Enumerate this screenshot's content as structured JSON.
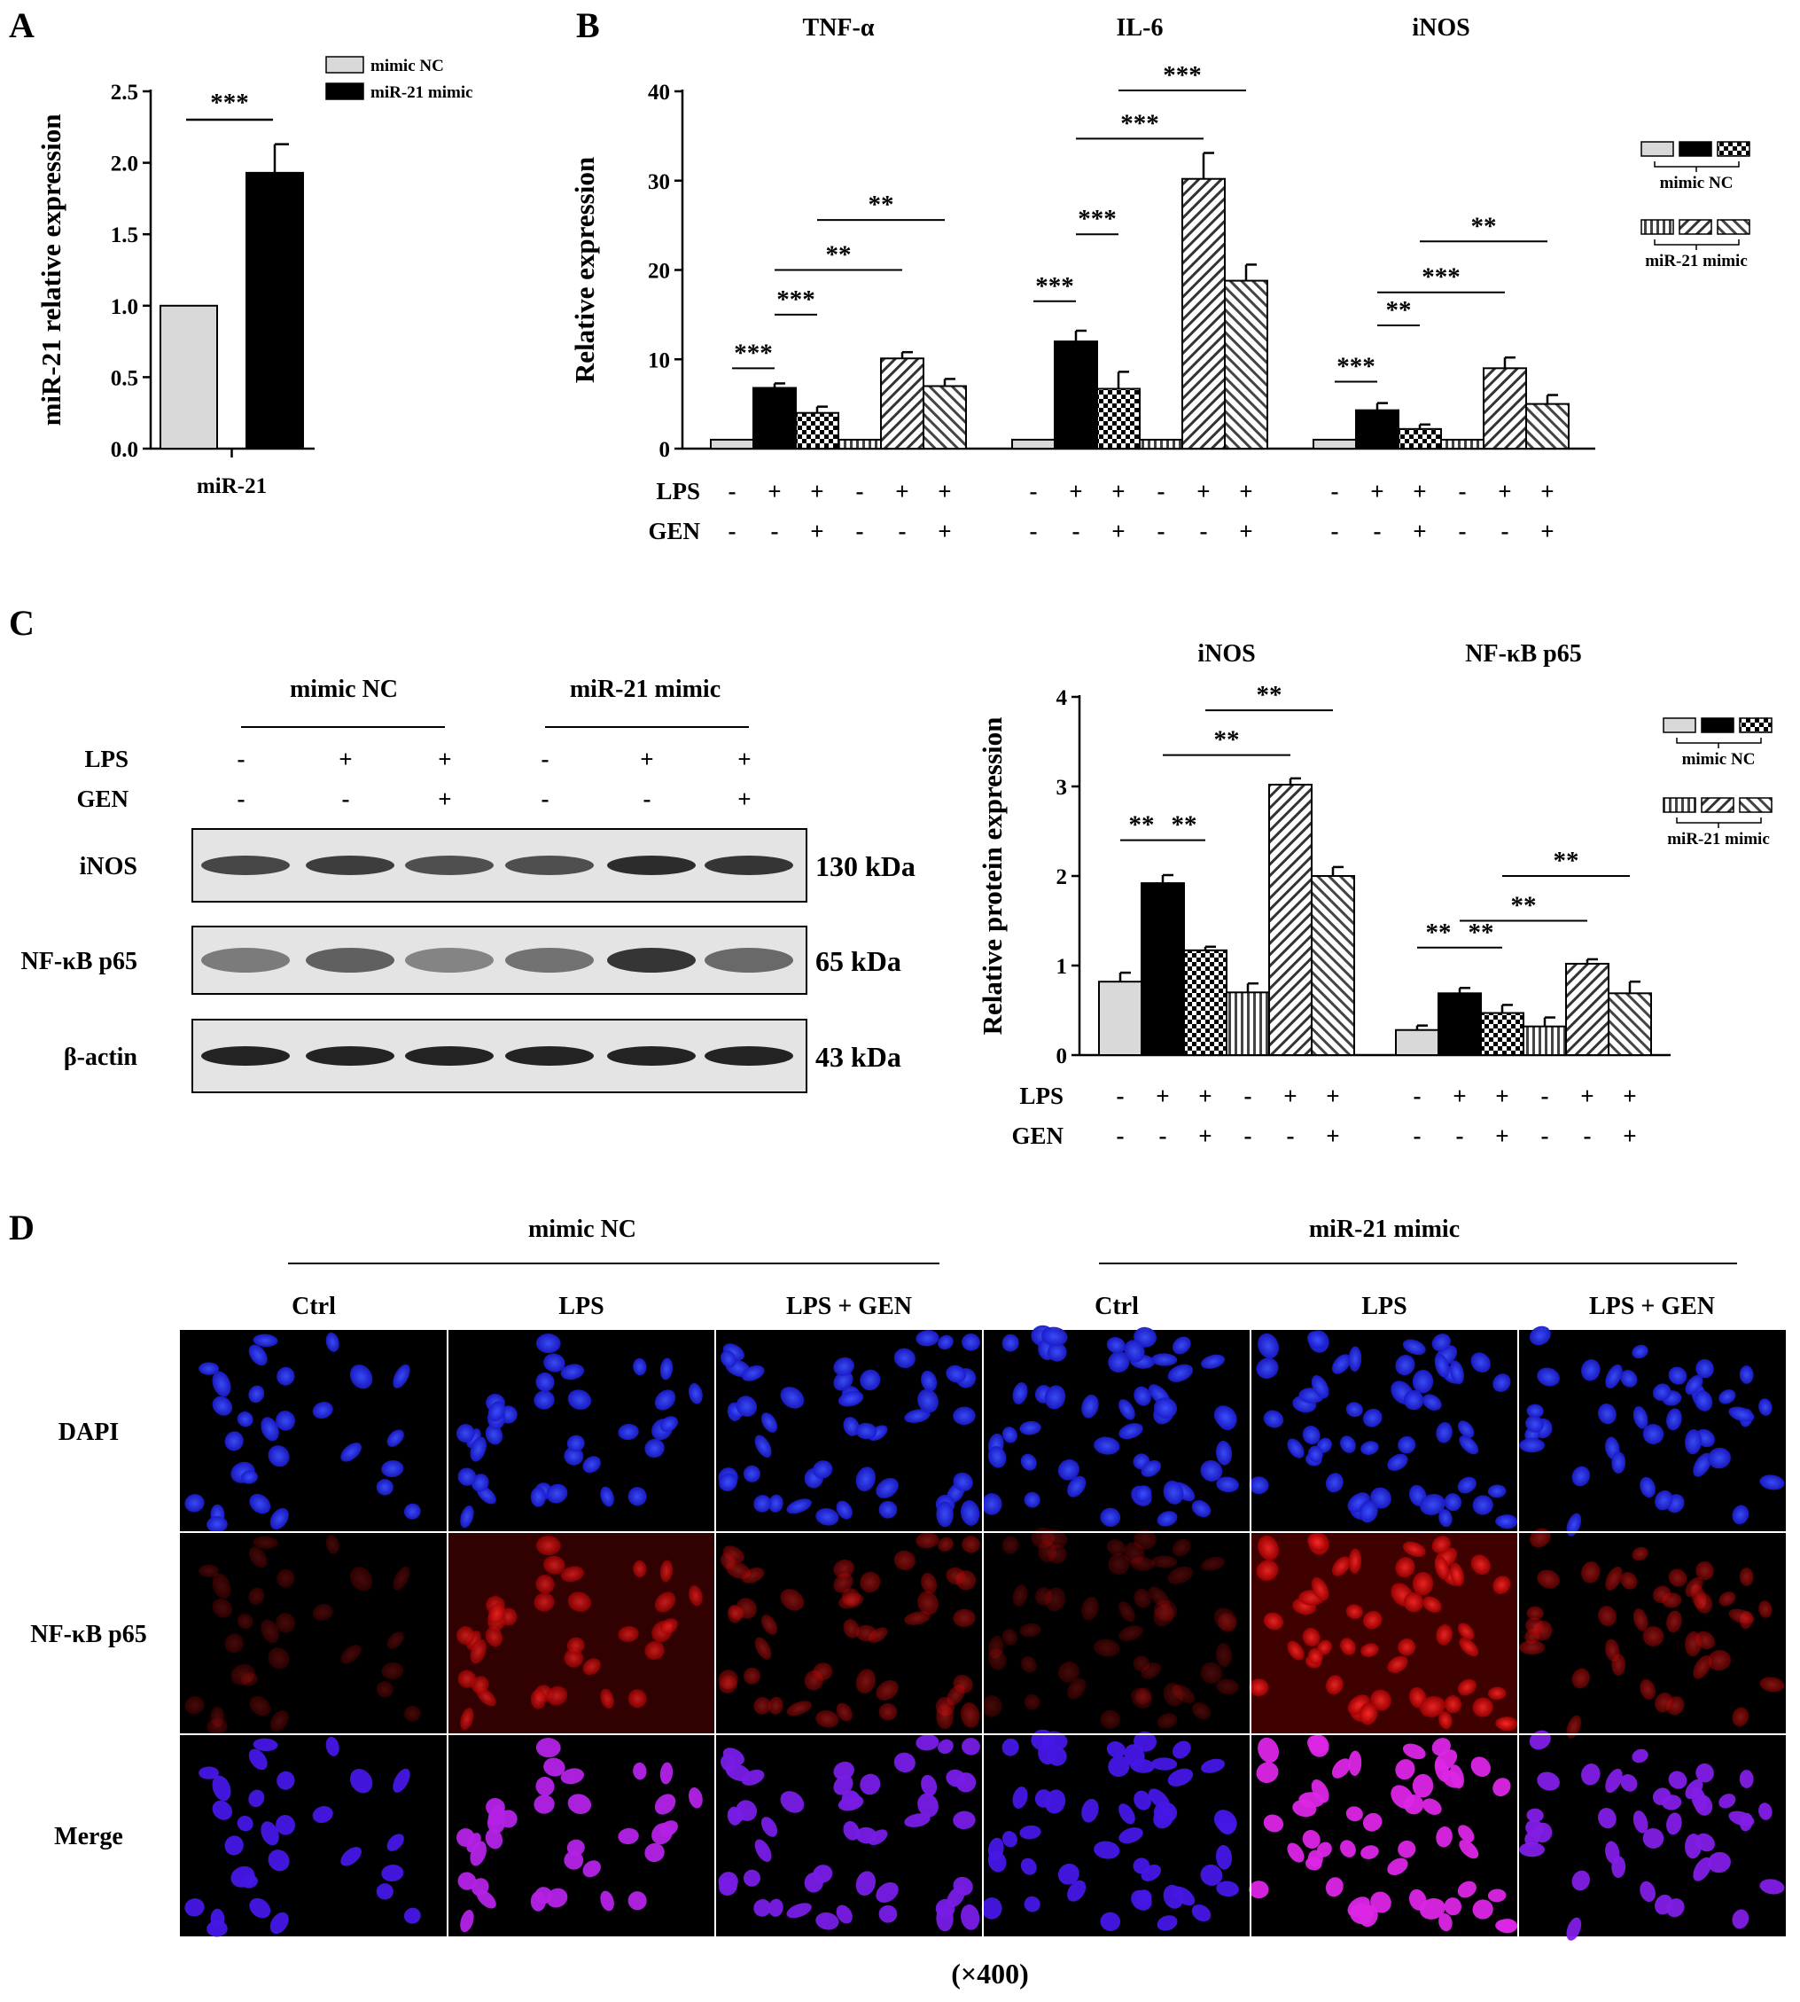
{
  "panels": {
    "a": "A",
    "b": "B",
    "c": "C",
    "d": "D"
  },
  "chart_data": [
    {
      "type": "bar",
      "panel": "A",
      "categories": [
        "miR-21"
      ],
      "series": [
        {
          "name": "mimic NC",
          "values": [
            1.0
          ],
          "errors": [
            0.0
          ],
          "color": "#d9d9d9"
        },
        {
          "name": "miR-21 mimic",
          "values": [
            1.93
          ],
          "errors": [
            0.2
          ],
          "color": "#000000"
        }
      ],
      "ylabel": "miR-21 relative expression",
      "ylim": [
        0,
        2.5
      ],
      "yticks": [
        "0.0",
        "0.5",
        "1.0",
        "1.5",
        "2.0",
        "2.5"
      ],
      "significance": [
        "***"
      ],
      "legend_position": "top-right",
      "grid": false
    },
    {
      "type": "bar",
      "panel": "B",
      "groups": [
        "TNF-α",
        "IL-6",
        "iNOS"
      ],
      "ylabel": "Relative expression",
      "ylim": [
        0,
        40
      ],
      "yticks": [
        "0",
        "10",
        "20",
        "30",
        "40"
      ],
      "row_labels": [
        "LPS",
        "GEN"
      ],
      "conditions": {
        "LPS": [
          "-",
          "+",
          "+",
          "-",
          "+",
          "+"
        ],
        "GEN": [
          "-",
          "-",
          "+",
          "-",
          "-",
          "+"
        ]
      },
      "values": [
        [
          1.0,
          6.8,
          4.0,
          1.0,
          10.1,
          7.0
        ],
        [
          1.0,
          12.0,
          6.7,
          1.0,
          30.2,
          18.8
        ],
        [
          1.0,
          4.3,
          2.2,
          1.0,
          9.0,
          5.0
        ]
      ],
      "errors": [
        [
          0,
          0.5,
          0.7,
          0,
          0.7,
          0.8
        ],
        [
          0,
          1.2,
          1.9,
          0,
          2.9,
          1.8
        ],
        [
          0,
          0.8,
          0.5,
          0,
          1.2,
          1.0
        ]
      ],
      "significance": [
        [
          "***",
          "***",
          "**",
          "**"
        ],
        [
          "***",
          "***",
          "***",
          "***"
        ],
        [
          "***",
          "**",
          "***",
          "**"
        ]
      ],
      "legend": {
        "titles": [
          "mimic NC",
          "miR-21 mimic"
        ]
      },
      "grid": false
    },
    {
      "type": "bar",
      "panel": "C",
      "groups": [
        "iNOS",
        "NF-κB p65"
      ],
      "ylabel": "Relative protein expression",
      "ylim": [
        0,
        4
      ],
      "yticks": [
        "0",
        "1",
        "2",
        "3",
        "4"
      ],
      "row_labels": [
        "LPS",
        "GEN"
      ],
      "conditions": {
        "LPS": [
          "-",
          "+",
          "+",
          "-",
          "+",
          "+"
        ],
        "GEN": [
          "-",
          "-",
          "+",
          "-",
          "-",
          "+"
        ]
      },
      "values": [
        [
          0.82,
          1.92,
          1.17,
          0.7,
          3.02,
          2.0
        ],
        [
          0.28,
          0.69,
          0.47,
          0.32,
          1.02,
          0.69
        ]
      ],
      "errors": [
        [
          0.1,
          0.09,
          0.04,
          0.1,
          0.07,
          0.1
        ],
        [
          0.05,
          0.06,
          0.09,
          0.1,
          0.05,
          0.13
        ]
      ],
      "significance": [
        [
          "**",
          "**",
          "**",
          "**"
        ],
        [
          "**",
          "**",
          "**",
          "**"
        ]
      ],
      "legend": {
        "titles": [
          "mimic NC",
          "miR-21 mimic"
        ]
      },
      "grid": false
    }
  ],
  "blot": {
    "group_labels": [
      "mimic NC",
      "miR-21 mimic"
    ],
    "row_labels": [
      "LPS",
      "GEN"
    ],
    "conditions": {
      "LPS": [
        "-",
        "+",
        "+",
        "-",
        "+",
        "+"
      ],
      "GEN": [
        "-",
        "-",
        "+",
        "-",
        "-",
        "+"
      ]
    },
    "proteins": [
      {
        "name": "iNOS",
        "size": "130 kDa",
        "intensity": [
          0.75,
          0.8,
          0.7,
          0.7,
          0.9,
          0.85
        ]
      },
      {
        "name": "NF-κB p65",
        "size": "65 kDa",
        "intensity": [
          0.45,
          0.6,
          0.4,
          0.5,
          0.85,
          0.55
        ]
      },
      {
        "name": "β-actin",
        "size": "43 kDa",
        "intensity": [
          0.95,
          0.95,
          0.95,
          0.95,
          0.95,
          0.95
        ]
      }
    ]
  },
  "immunofluorescence": {
    "group_labels": [
      "mimic NC",
      "miR-21 mimic"
    ],
    "columns": [
      "Ctrl",
      "LPS",
      "LPS + GEN",
      "Ctrl",
      "LPS",
      "LPS + GEN"
    ],
    "rows": [
      "DAPI",
      "NF-κB p65",
      "Merge"
    ],
    "red_intensity": [
      0.15,
      0.7,
      0.4,
      0.15,
      0.9,
      0.45
    ],
    "cell_density": [
      0.35,
      0.5,
      0.8,
      0.85,
      0.95,
      0.65
    ],
    "magnification": "(×400)"
  }
}
